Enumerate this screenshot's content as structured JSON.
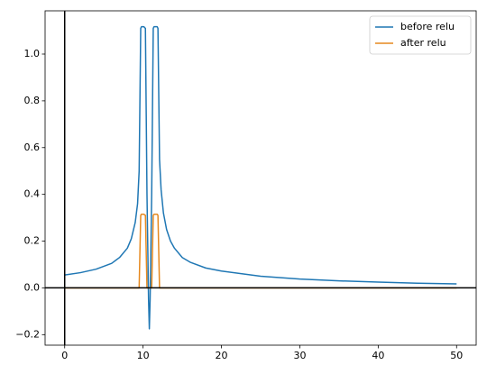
{
  "chart_data": {
    "type": "line",
    "x": [
      0,
      2,
      4,
      6,
      7,
      8,
      8.5,
      9,
      9.3,
      9.5,
      9.7,
      9.8,
      10.1,
      10.3,
      10.5,
      10.7,
      10.8,
      10.9,
      11.1,
      11.3,
      11.4,
      11.8,
      11.9,
      12.1,
      12.3,
      12.6,
      13,
      13.5,
      14,
      15,
      16,
      18,
      20,
      25,
      30,
      35,
      40,
      45,
      50
    ],
    "series": [
      {
        "name": "before relu",
        "color": "#1f77b4",
        "values": [
          0.055,
          0.065,
          0.08,
          0.105,
          0.13,
          0.17,
          0.21,
          0.28,
          0.36,
          0.5,
          1.11,
          1.117,
          1.117,
          1.11,
          0.4,
          -0.05,
          -0.175,
          -0.05,
          0.4,
          1.11,
          1.117,
          1.117,
          1.11,
          0.55,
          0.42,
          0.32,
          0.25,
          0.2,
          0.17,
          0.13,
          0.11,
          0.085,
          0.072,
          0.05,
          0.038,
          0.03,
          0.025,
          0.02,
          0.017
        ]
      },
      {
        "name": "after relu",
        "color": "#e6891f",
        "values": [
          0,
          0,
          0,
          0,
          0,
          0,
          0,
          0,
          0,
          0,
          0.31,
          0.315,
          0.315,
          0.31,
          0,
          0,
          0,
          0,
          0,
          0.31,
          0.315,
          0.315,
          0.31,
          0,
          0,
          0,
          0,
          0,
          0,
          0,
          0,
          0,
          0,
          0,
          0,
          0,
          0,
          0,
          0
        ]
      }
    ],
    "xlim": [
      -2.5,
      52.5
    ],
    "xticks": [
      0,
      10,
      20,
      30,
      40,
      50
    ],
    "ylim": [
      -0.245,
      1.185
    ],
    "yticks": [
      {
        "value": -0.2,
        "label": "−0.2"
      },
      {
        "value": 0,
        "label": "0.0"
      },
      0.2,
      0.4,
      0.6,
      0.8,
      {
        "value": 1,
        "label": "1.0"
      }
    ],
    "axhline": 0,
    "axvline": 0,
    "legend": "upper right"
  }
}
